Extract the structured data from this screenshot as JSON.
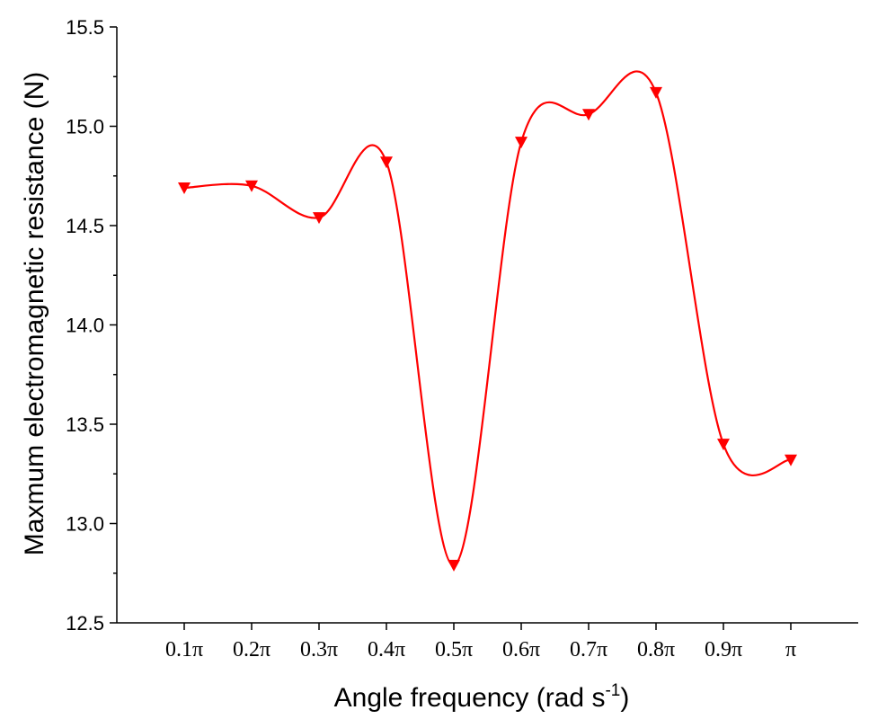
{
  "chart_data": {
    "type": "line",
    "title": "",
    "xlabel": "Angle frequency (rad s",
    "xlabel_superscript": "-1",
    "xlabel_close": ")",
    "ylabel": "Maxmum electromagnetic resistance (N)",
    "categories": [
      "0.1π",
      "0.2π",
      "0.3π",
      "0.4π",
      "0.5π",
      "0.6π",
      "0.7π",
      "0.8π",
      "0.9π",
      "π"
    ],
    "x": [
      0.1,
      0.2,
      0.3,
      0.4,
      0.5,
      0.6,
      0.7,
      0.8,
      0.9,
      1.0
    ],
    "series": [
      {
        "values": [
          14.69,
          14.7,
          14.54,
          14.82,
          12.79,
          14.92,
          15.06,
          15.17,
          13.4,
          13.32
        ],
        "color": "#ff0000",
        "marker": "triangle-down",
        "smoothed": true
      }
    ],
    "xlim": [
      0.0,
      1.1
    ],
    "ylim": [
      12.5,
      15.5
    ],
    "yticks": [
      "12.5",
      "13.0",
      "13.5",
      "14.0",
      "14.5",
      "15.0",
      "15.5"
    ],
    "ytick_values": [
      12.5,
      13.0,
      13.5,
      14.0,
      14.5,
      15.0,
      15.5
    ],
    "grid": false,
    "legend": "none"
  }
}
